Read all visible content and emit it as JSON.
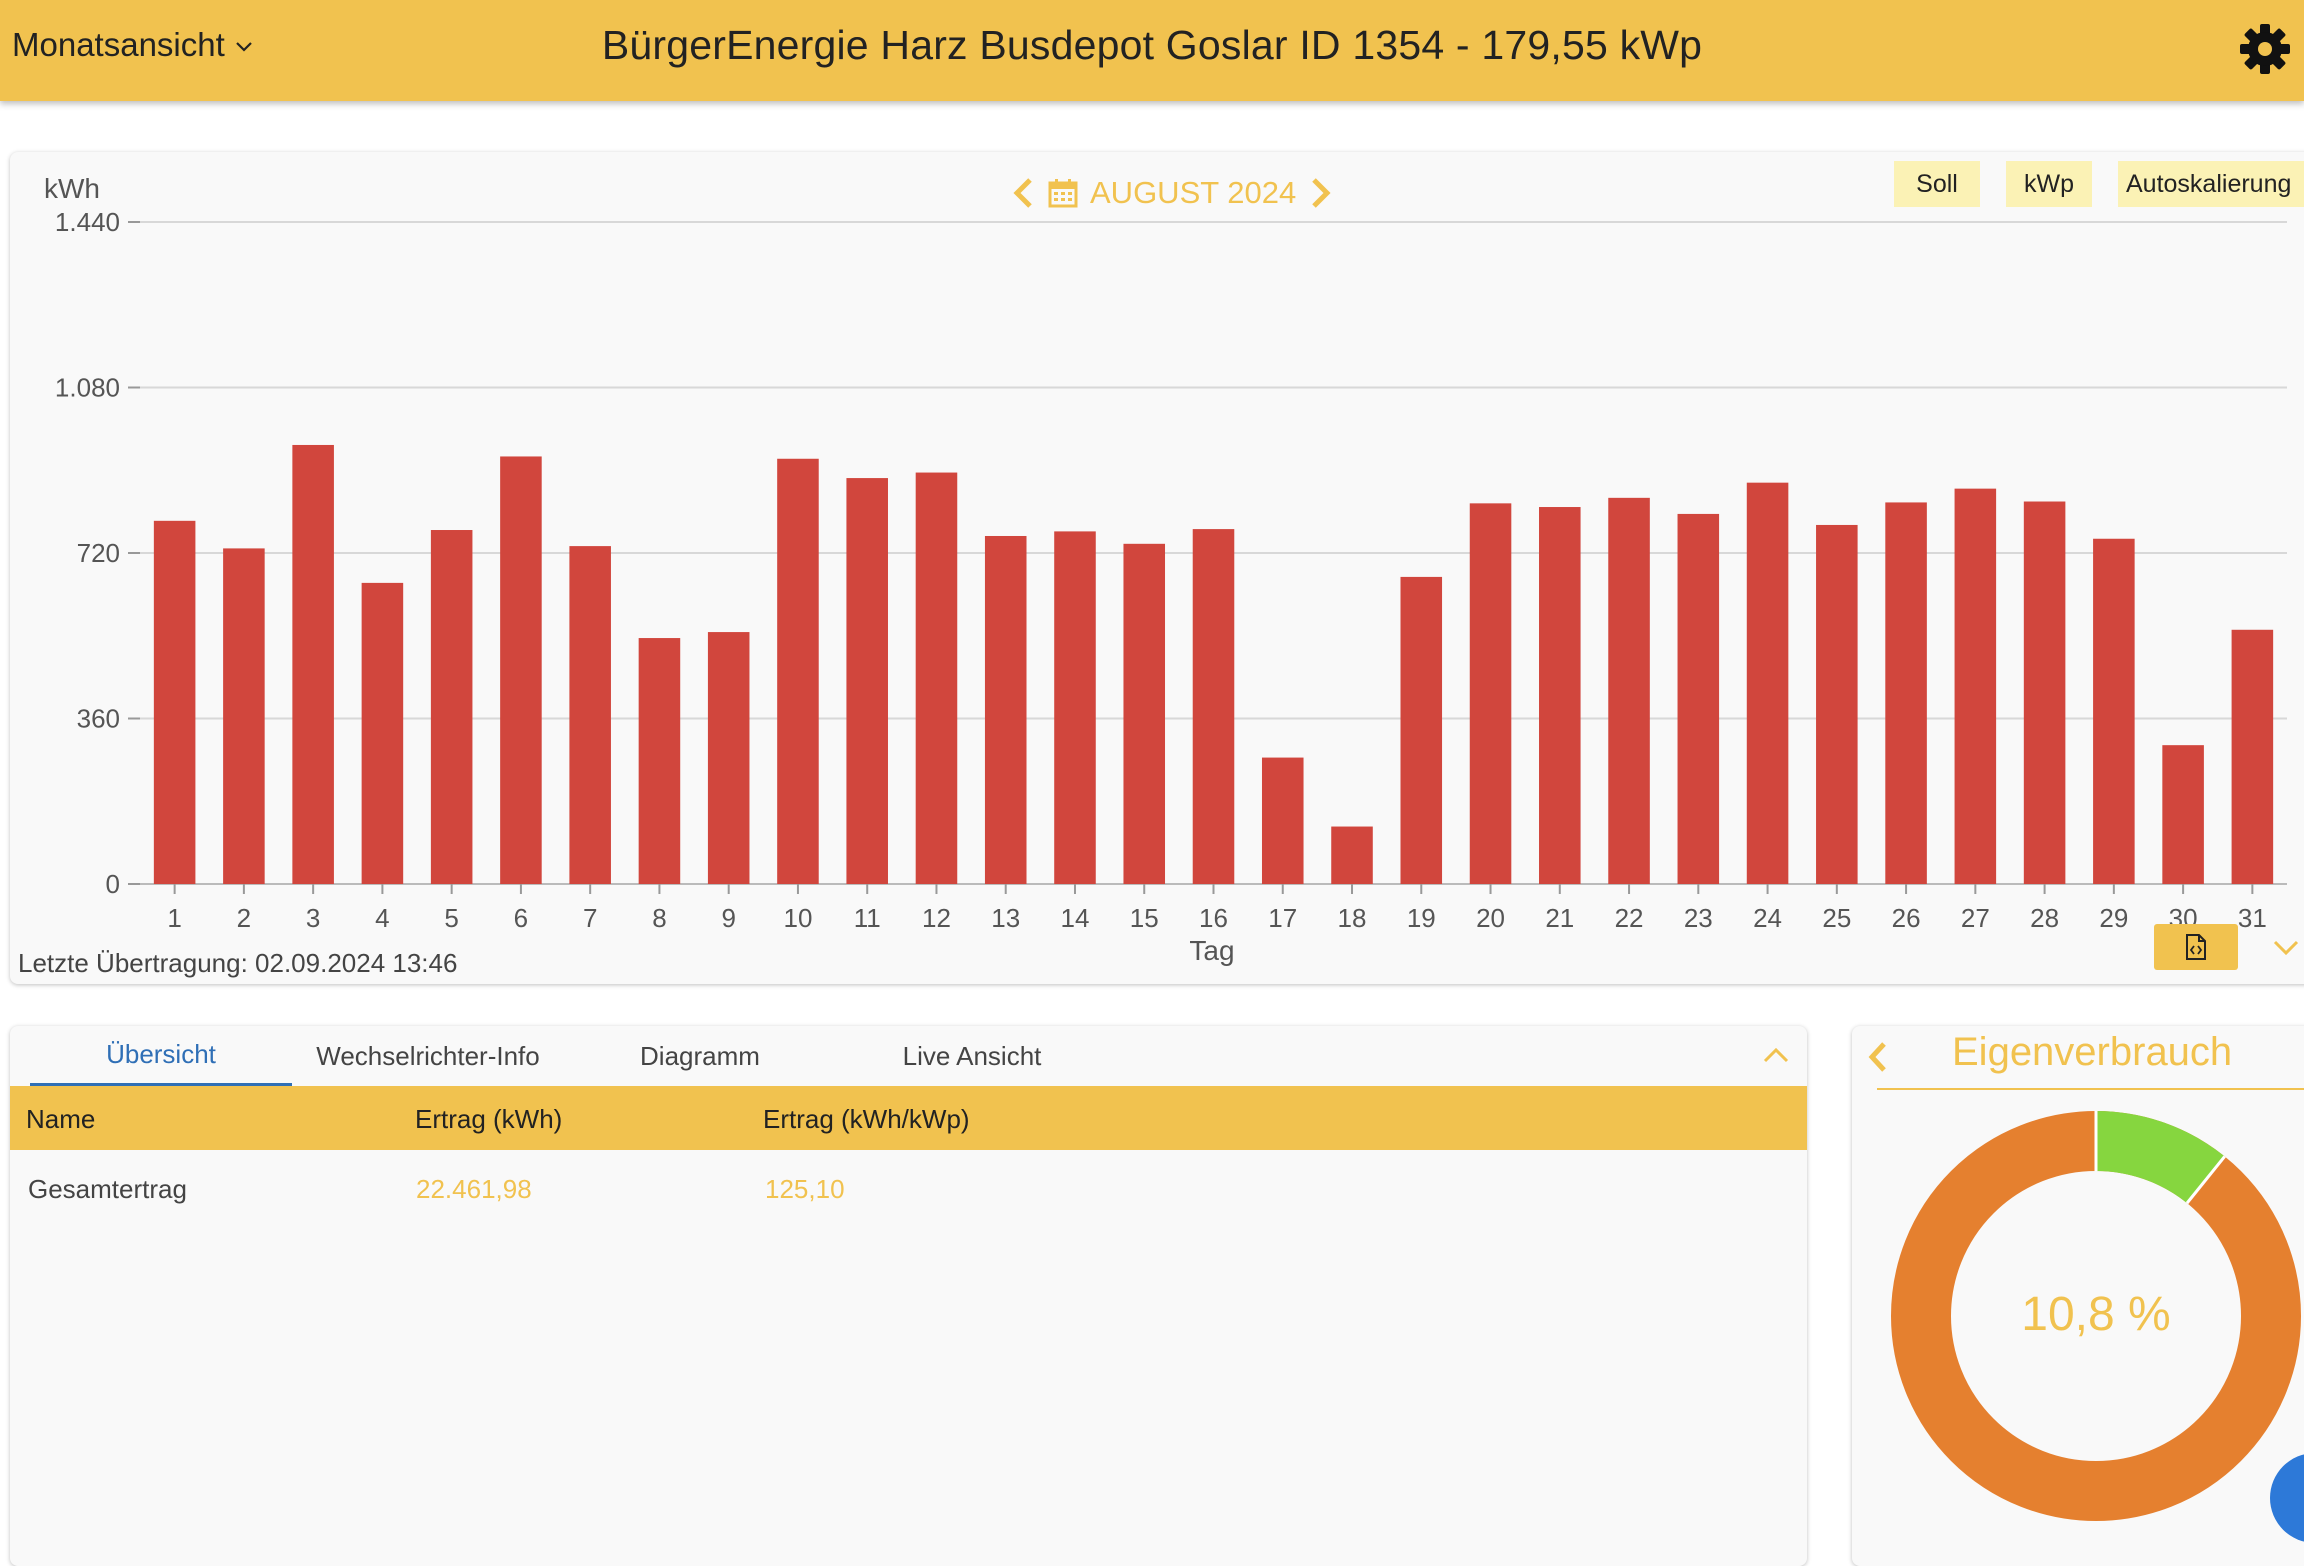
{
  "header": {
    "view_select": "Monatsansicht",
    "title": "BürgerEnergie Harz Busdepot Goslar ID 1354 - 179,55 kWp"
  },
  "chart_toolbar": {
    "month_label": "AUGUST 2024",
    "soll_label": "Soll",
    "kwp_label": "kWp",
    "autoscale_label": "Autoskalierung"
  },
  "chart_data": {
    "type": "bar",
    "ylabel": "kWh",
    "xlabel": "Tag",
    "ylim": [
      0,
      1440
    ],
    "yticks": [
      0,
      360,
      720,
      1080,
      1440
    ],
    "ytick_labels": [
      "0",
      "360",
      "720",
      "1.080",
      "1.440"
    ],
    "categories": [
      "1",
      "2",
      "3",
      "4",
      "5",
      "6",
      "7",
      "8",
      "9",
      "10",
      "11",
      "12",
      "13",
      "14",
      "15",
      "16",
      "17",
      "18",
      "19",
      "20",
      "21",
      "22",
      "23",
      "24",
      "25",
      "26",
      "27",
      "28",
      "29",
      "30",
      "31"
    ],
    "values": [
      790,
      730,
      955,
      655,
      770,
      930,
      735,
      535,
      548,
      925,
      883,
      895,
      757,
      767,
      740,
      772,
      275,
      125,
      668,
      828,
      820,
      840,
      805,
      873,
      781,
      830,
      860,
      832,
      751,
      302,
      553
    ],
    "bar_color": "#d1463d",
    "grid": true
  },
  "footer": {
    "last_transfer": "Letzte Übertragung: 02.09.2024 13:46"
  },
  "tabs": [
    "Übersicht",
    "Wechselrichter-Info",
    "Diagramm",
    "Live Ansicht"
  ],
  "table": {
    "headers": [
      "Name",
      "Ertrag (kWh)",
      "Ertrag (kWh/kWp)"
    ],
    "rows": [
      {
        "name": "Gesamtertrag",
        "kwh": "22.461,98",
        "kwh_kwp": "125,10"
      }
    ]
  },
  "eigenverbrauch": {
    "title": "Eigenverbrauch",
    "percent_label": "10,8 %",
    "fraction": 0.108,
    "color_own": "#86d63f",
    "color_rest": "#e5802f"
  },
  "colors": {
    "accent": "#f1c24f",
    "tab_active": "#2f6fb6",
    "fab": "#2d79d8"
  }
}
